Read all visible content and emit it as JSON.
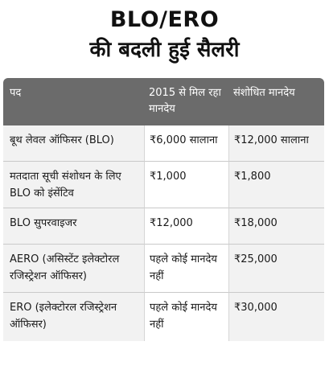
{
  "title": {
    "line1": "BLO/ERO",
    "line2": "की बदली हुई सैलरी"
  },
  "table": {
    "headers": [
      "पद",
      "2015 से मिल रहा मानदेय",
      "संशोधित मानदेय"
    ],
    "rows": [
      {
        "post": "बूथ लेवल ऑफिसर (BLO)",
        "old": "₹6,000 सालाना",
        "new": "₹12,000 सालाना"
      },
      {
        "post": "मतदाता सूची संशोधन के लिए BLO को इंसेंटिव",
        "old": "₹1,000",
        "new": "₹1,800"
      },
      {
        "post": "BLO सुपरवाइजर",
        "old": "₹12,000",
        "new": "₹18,000"
      },
      {
        "post": "AERO (असिस्टेंट इलेक्टोरल रजिस्ट्रेशन ऑफिसर)",
        "old": "पहले कोई मानदेय नहीं",
        "new": "₹25,000"
      },
      {
        "post": "ERO (इलेक्टोरल रजिस्ट्रेशन ऑफिसर)",
        "old": "पहले कोई मानदेय नहीं",
        "new": "₹30,000"
      }
    ]
  },
  "colors": {
    "header_bg": "#6b6b6b",
    "header_text": "#ffffff",
    "shaded_cell": "#f2f2f2"
  }
}
